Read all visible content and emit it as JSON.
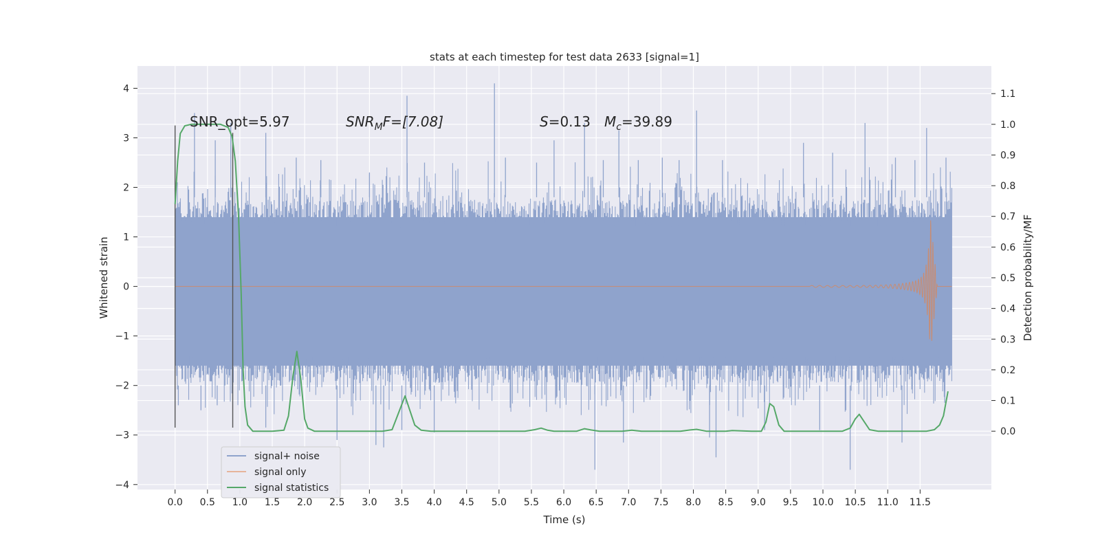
{
  "chart_data": {
    "type": "line",
    "title": "stats at each timestep for test data 2633 [signal=1]",
    "xlabel": "Time (s)",
    "ylabel_left": "Whitened strain",
    "ylabel_right": "Detection probability/MF",
    "xlim": [
      -0.58,
      12.6
    ],
    "ylim_left": [
      -4.1,
      4.45
    ],
    "ylim_right": [
      -0.19,
      1.19
    ],
    "x_ticks": [
      0.0,
      0.5,
      1.0,
      1.5,
      2.0,
      2.5,
      3.0,
      3.5,
      4.0,
      4.5,
      5.0,
      5.5,
      6.0,
      6.5,
      7.0,
      7.5,
      8.0,
      8.5,
      9.0,
      9.5,
      10.0,
      10.5,
      11.0,
      11.5
    ],
    "x_tick_labels": [
      "0.0",
      "0.5",
      "1.0",
      "1.5",
      "2.0",
      "2.5",
      "3.0",
      "3.5",
      "4.0",
      "4.5",
      "5.0",
      "5.5",
      "6.0",
      "6.5",
      "7.0",
      "7.5",
      "8.0",
      "8.5",
      "9.0",
      "9.5",
      "10.0",
      "10.5",
      "11.0",
      "11.5"
    ],
    "y_left_ticks": [
      -4,
      -3,
      -2,
      -1,
      0,
      1,
      2,
      3,
      4
    ],
    "y_left_tick_labels": [
      "−4",
      "−3",
      "−2",
      "−1",
      "0",
      "1",
      "2",
      "3",
      "4"
    ],
    "y_right_ticks": [
      0.0,
      0.1,
      0.2,
      0.3,
      0.4,
      0.5,
      0.6,
      0.7,
      0.8,
      0.9,
      1.0,
      1.1
    ],
    "y_right_tick_labels": [
      "0.0",
      "0.1",
      "0.2",
      "0.3",
      "0.4",
      "0.5",
      "0.6",
      "0.7",
      "0.8",
      "0.9",
      "1.0",
      "1.1"
    ],
    "grid": true,
    "legend_position": "lower-left",
    "annotations": {
      "snr_opt": "SNR_opt=5.97",
      "snr_mf_prefix": "SNR",
      "snr_mf_sub": "M",
      "snr_mf_suffix": "F=[7.08]",
      "s_prefix": "S",
      "s_suffix": "=0.13",
      "mc_prefix": "M",
      "mc_sub": "c",
      "mc_suffix": "=39.89"
    },
    "vertical_markers": [
      {
        "x": 0.0,
        "y_range": [
          -2.85,
          3.25
        ]
      },
      {
        "x": 0.89,
        "y_range": [
          -2.85,
          3.1
        ]
      }
    ],
    "series": [
      {
        "name": "signal+ noise",
        "axis": "left",
        "color": "#8fa3cc",
        "x_range": [
          0.0,
          11.99
        ],
        "envelope_hi": 1.4,
        "envelope_lo": -1.6,
        "spikes": [
          [
            0.3,
            3.5
          ],
          [
            0.62,
            2.95
          ],
          [
            0.86,
            3.3
          ],
          [
            1.4,
            3.1
          ],
          [
            1.87,
            2.6
          ],
          [
            2.25,
            2.55
          ],
          [
            3.58,
            3.85
          ],
          [
            3.0,
            2.3
          ],
          [
            3.85,
            2.5
          ],
          [
            4.93,
            4.1
          ],
          [
            5.1,
            2.6
          ],
          [
            5.58,
            2.5
          ],
          [
            5.85,
            2.95
          ],
          [
            6.32,
            3.3
          ],
          [
            6.61,
            2.55
          ],
          [
            6.85,
            3.15
          ],
          [
            7.15,
            2.55
          ],
          [
            7.52,
            2.6
          ],
          [
            7.78,
            2.55
          ],
          [
            8.05,
            3.55
          ],
          [
            8.45,
            2.55
          ],
          [
            9.7,
            2.9
          ],
          [
            10.15,
            2.7
          ],
          [
            10.65,
            3.3
          ],
          [
            11.12,
            2.6
          ],
          [
            11.42,
            2.55
          ],
          [
            11.6,
            3.2
          ],
          [
            11.9,
            2.6
          ],
          [
            0.05,
            -2.4
          ],
          [
            0.4,
            -2.5
          ],
          [
            0.65,
            -2.4
          ],
          [
            1.4,
            -2.85
          ],
          [
            2.5,
            -3.1
          ],
          [
            3.1,
            -3.2
          ],
          [
            3.22,
            -3.25
          ],
          [
            3.5,
            -2.9
          ],
          [
            4.0,
            -2.95
          ],
          [
            6.48,
            -3.7
          ],
          [
            6.92,
            -3.15
          ],
          [
            8.25,
            -3.05
          ],
          [
            8.35,
            -3.45
          ],
          [
            9.1,
            -2.9
          ],
          [
            9.95,
            -2.9
          ],
          [
            10.42,
            -3.7
          ],
          [
            11.22,
            -3.15
          ],
          [
            11.88,
            -2.35
          ]
        ]
      },
      {
        "name": "signal only",
        "axis": "left",
        "color": "#dd8452",
        "chirp_start": 9.8,
        "chirp_peak_time": 11.66,
        "chirp_peak_amp": 1.38,
        "chirp_min": -1.25
      },
      {
        "name": "signal statistics",
        "axis": "right",
        "color": "#55a868",
        "points": [
          [
            0.0,
            0.74
          ],
          [
            0.04,
            0.88
          ],
          [
            0.08,
            0.97
          ],
          [
            0.15,
            0.995
          ],
          [
            0.25,
            1.0
          ],
          [
            0.55,
            1.0
          ],
          [
            0.7,
            1.0
          ],
          [
            0.82,
            0.99
          ],
          [
            0.88,
            0.96
          ],
          [
            0.93,
            0.88
          ],
          [
            0.98,
            0.7
          ],
          [
            1.02,
            0.45
          ],
          [
            1.05,
            0.2
          ],
          [
            1.08,
            0.08
          ],
          [
            1.12,
            0.02
          ],
          [
            1.2,
            0.0
          ],
          [
            1.5,
            0.0
          ],
          [
            1.68,
            0.003
          ],
          [
            1.75,
            0.05
          ],
          [
            1.82,
            0.18
          ],
          [
            1.88,
            0.26
          ],
          [
            1.94,
            0.17
          ],
          [
            2.0,
            0.04
          ],
          [
            2.05,
            0.01
          ],
          [
            2.15,
            0.0
          ],
          [
            3.2,
            0.0
          ],
          [
            3.35,
            0.005
          ],
          [
            3.45,
            0.06
          ],
          [
            3.55,
            0.115
          ],
          [
            3.62,
            0.07
          ],
          [
            3.7,
            0.02
          ],
          [
            3.8,
            0.003
          ],
          [
            3.95,
            0.0
          ],
          [
            5.4,
            0.0
          ],
          [
            5.55,
            0.005
          ],
          [
            5.65,
            0.01
          ],
          [
            5.75,
            0.003
          ],
          [
            5.85,
            0.0
          ],
          [
            6.2,
            0.0
          ],
          [
            6.32,
            0.008
          ],
          [
            6.42,
            0.004
          ],
          [
            6.55,
            0.0
          ],
          [
            6.9,
            0.0
          ],
          [
            7.05,
            0.003
          ],
          [
            7.2,
            0.0
          ],
          [
            7.8,
            0.0
          ],
          [
            7.95,
            0.004
          ],
          [
            8.05,
            0.006
          ],
          [
            8.2,
            0.0
          ],
          [
            8.5,
            0.0
          ],
          [
            8.6,
            0.002
          ],
          [
            8.9,
            0.0
          ],
          [
            9.05,
            0.0
          ],
          [
            9.12,
            0.03
          ],
          [
            9.18,
            0.09
          ],
          [
            9.24,
            0.08
          ],
          [
            9.32,
            0.02
          ],
          [
            9.4,
            0.0
          ],
          [
            10.3,
            0.0
          ],
          [
            10.42,
            0.01
          ],
          [
            10.5,
            0.04
          ],
          [
            10.56,
            0.055
          ],
          [
            10.64,
            0.03
          ],
          [
            10.72,
            0.005
          ],
          [
            10.85,
            0.0
          ],
          [
            11.6,
            0.0
          ],
          [
            11.72,
            0.005
          ],
          [
            11.8,
            0.02
          ],
          [
            11.86,
            0.05
          ],
          [
            11.93,
            0.13
          ]
        ]
      }
    ]
  }
}
